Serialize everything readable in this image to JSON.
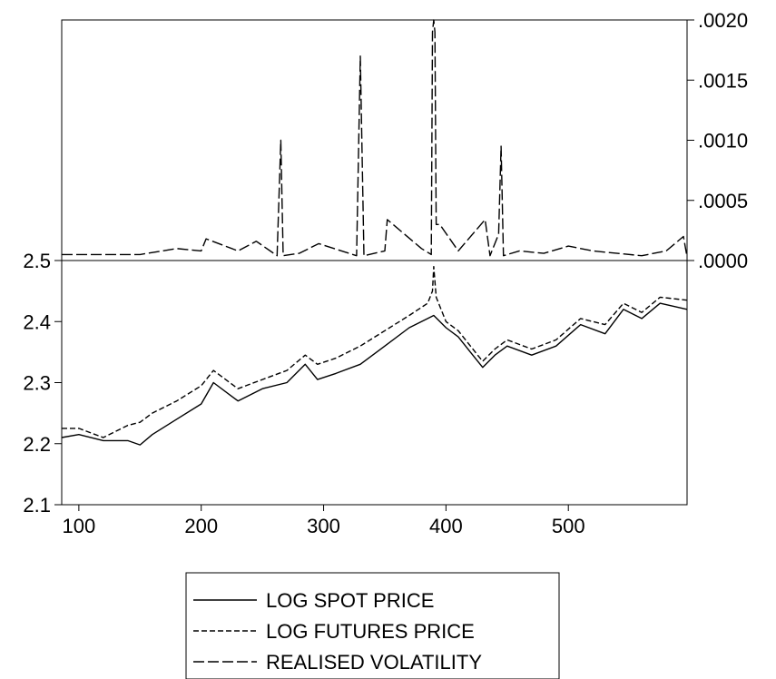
{
  "chart_data": {
    "type": "line",
    "panels": [
      {
        "name": "volatility-panel",
        "y_axis_side": "right",
        "ylim": [
          0,
          0.002
        ],
        "yticks": [
          0,
          0.0005,
          0.001,
          0.0015,
          0.002
        ],
        "ytick_labels": [
          ".0000",
          ".0005",
          ".0010",
          ".0015",
          ".0020"
        ],
        "series": [
          "REALISED VOLATILITY"
        ]
      },
      {
        "name": "price-panel",
        "y_axis_side": "left",
        "ylim": [
          2.1,
          2.5
        ],
        "yticks": [
          2.1,
          2.2,
          2.3,
          2.4,
          2.5
        ],
        "ytick_labels": [
          "2.1",
          "2.2",
          "2.3",
          "2.4",
          "2.5"
        ],
        "series": [
          "LOG SPOT PRICE",
          "LOG FUTURES PRICE"
        ]
      }
    ],
    "xlim": [
      86,
      597
    ],
    "xticks": [
      100,
      200,
      300,
      400,
      500
    ],
    "xtick_labels": [
      "100",
      "200",
      "300",
      "400",
      "500"
    ],
    "series": [
      {
        "name": "LOG SPOT PRICE",
        "style": "solid",
        "x": [
          86,
          100,
          120,
          140,
          150,
          160,
          180,
          200,
          210,
          230,
          250,
          270,
          285,
          295,
          310,
          330,
          350,
          370,
          385,
          390,
          400,
          410,
          420,
          430,
          440,
          450,
          470,
          490,
          510,
          530,
          545,
          560,
          575,
          597
        ],
        "values": [
          2.21,
          2.215,
          2.205,
          2.205,
          2.198,
          2.215,
          2.24,
          2.265,
          2.3,
          2.27,
          2.29,
          2.3,
          2.33,
          2.305,
          2.315,
          2.33,
          2.36,
          2.39,
          2.405,
          2.41,
          2.39,
          2.375,
          2.35,
          2.325,
          2.345,
          2.36,
          2.345,
          2.36,
          2.395,
          2.38,
          2.42,
          2.405,
          2.43,
          2.42
        ]
      },
      {
        "name": "LOG FUTURES PRICE",
        "style": "dashed",
        "x": [
          86,
          100,
          120,
          140,
          150,
          160,
          180,
          200,
          210,
          230,
          250,
          270,
          285,
          295,
          310,
          330,
          350,
          370,
          385,
          389,
          390,
          392,
          400,
          410,
          420,
          430,
          440,
          450,
          470,
          490,
          510,
          530,
          545,
          560,
          575,
          597
        ],
        "values": [
          2.225,
          2.225,
          2.21,
          2.23,
          2.235,
          2.25,
          2.27,
          2.295,
          2.32,
          2.29,
          2.305,
          2.32,
          2.345,
          2.33,
          2.34,
          2.36,
          2.385,
          2.41,
          2.43,
          2.45,
          2.49,
          2.44,
          2.4,
          2.385,
          2.36,
          2.335,
          2.355,
          2.37,
          2.355,
          2.37,
          2.405,
          2.395,
          2.43,
          2.415,
          2.44,
          2.435
        ]
      },
      {
        "name": "REALISED VOLATILITY",
        "style": "long-dashed",
        "x": [
          86,
          100,
          150,
          180,
          200,
          204,
          230,
          245,
          262,
          265,
          267,
          280,
          296,
          327,
          330,
          333,
          350,
          352,
          380,
          388,
          389,
          390,
          391,
          392,
          395,
          410,
          432,
          436,
          443,
          445,
          447,
          460,
          480,
          500,
          520,
          540,
          560,
          580,
          594,
          597
        ],
        "values": [
          5e-05,
          5e-05,
          5e-05,
          0.0001,
          8e-05,
          0.00018,
          8e-05,
          0.00016,
          4e-05,
          0.001,
          4e-05,
          6e-05,
          0.00014,
          4e-05,
          0.0017,
          4e-05,
          8e-05,
          0.00034,
          0.0001,
          5e-05,
          0.0019,
          0.002,
          0.0019,
          0.0003,
          0.0003,
          8e-05,
          0.00034,
          4e-05,
          0.00022,
          0.00095,
          4e-05,
          8e-05,
          6e-05,
          0.00012,
          8e-05,
          6e-05,
          4e-05,
          8e-05,
          0.0002,
          3e-05
        ]
      }
    ],
    "legend": {
      "placement": "bottom-center",
      "entries": [
        "LOG SPOT PRICE",
        "LOG FUTURES PRICE",
        "REALISED VOLATILITY"
      ]
    },
    "title": "",
    "xlabel": "",
    "ylabel": ""
  }
}
